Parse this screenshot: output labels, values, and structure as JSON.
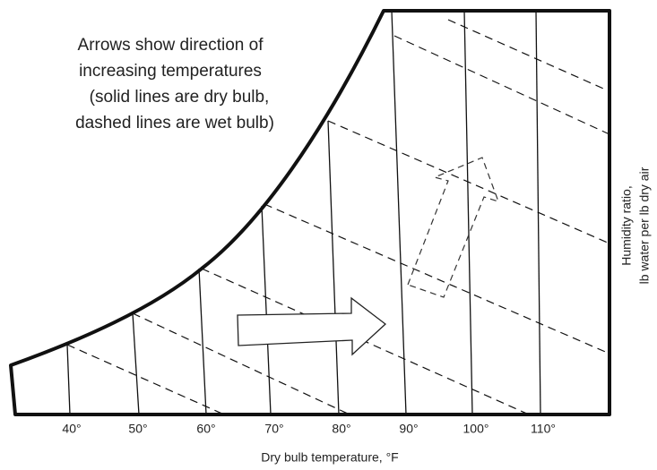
{
  "annotation": [
    "Arrows show direction of",
    "increasing temperatures",
    "(solid lines are dry bulb,",
    "dashed lines are wet bulb)"
  ],
  "x_ticks": [
    "40°",
    "50°",
    "60°",
    "70°",
    "80°",
    "90°",
    "100°",
    "110°"
  ],
  "x_axis_label": "Dry bulb temperature, °F",
  "y_axis_label": [
    "Humidity ratio,",
    "lb water per lb dry air"
  ]
}
